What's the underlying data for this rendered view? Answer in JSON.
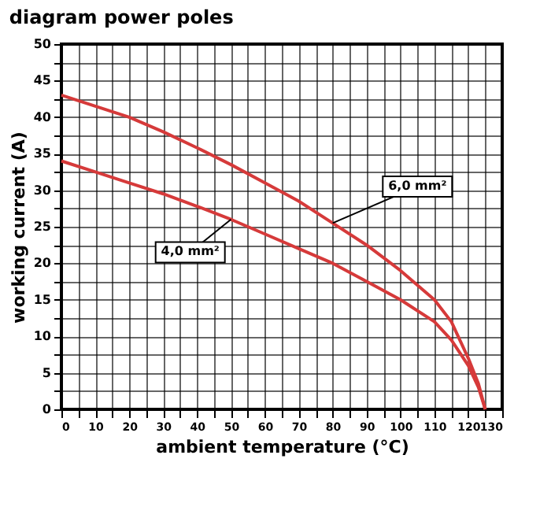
{
  "chart_data": {
    "type": "line",
    "title": "diagram power poles",
    "xlabel": "ambient temperature (°C)",
    "ylabel": "working current (A)",
    "xlim": [
      0,
      130
    ],
    "ylim": [
      0,
      50
    ],
    "xticks": [
      0,
      {
        "value": 5,
        "label": null
      },
      10,
      {
        "value": 15,
        "label": null
      },
      20,
      {
        "value": 25,
        "label": null
      },
      30,
      {
        "value": 35,
        "label": null
      },
      40,
      {
        "value": 45,
        "label": null
      },
      50,
      {
        "value": 55,
        "label": null
      },
      60,
      {
        "value": 65,
        "label": null
      },
      70,
      {
        "value": 75,
        "label": null
      },
      80,
      {
        "value": 85,
        "label": null
      },
      90,
      {
        "value": 95,
        "label": null
      },
      100,
      {
        "value": 105,
        "label": null
      },
      110,
      {
        "value": 115,
        "label": null
      },
      120,
      {
        "value": 125,
        "label": null
      },
      130
    ],
    "yticks": [
      0,
      {
        "value": 2.5,
        "label": null
      },
      5,
      {
        "value": 7.5,
        "label": null
      },
      10,
      {
        "value": 12.5,
        "label": null
      },
      15,
      {
        "value": 17.5,
        "label": null
      },
      20,
      {
        "value": 22.5,
        "label": null
      },
      25,
      {
        "value": 27.5,
        "label": null
      },
      30,
      {
        "value": 32.5,
        "label": null
      },
      35,
      {
        "value": 37.5,
        "label": null
      },
      40,
      {
        "value": 42.5,
        "label": null
      },
      45,
      {
        "value": 47.5,
        "label": null
      },
      50
    ],
    "grid": true,
    "legend": false,
    "marker": "none",
    "line_style": "solid",
    "series": [
      {
        "color": "#d63a3a",
        "x": [
          0,
          10,
          20,
          30,
          40,
          50,
          60,
          70,
          80,
          90,
          100,
          110,
          115,
          120,
          123,
          125
        ],
        "values": [
          43,
          41.5,
          40,
          38,
          35.8,
          33.5,
          31,
          28.5,
          25.5,
          22.5,
          19,
          15,
          12,
          7,
          3.5,
          0
        ]
      },
      {
        "color": "#d63a3a",
        "x": [
          0,
          10,
          20,
          30,
          40,
          50,
          60,
          70,
          80,
          90,
          100,
          110,
          115,
          120,
          123,
          125
        ],
        "values": [
          34,
          32.5,
          31,
          29.5,
          27.8,
          26,
          24,
          22,
          20,
          17.5,
          15,
          12,
          9.5,
          6,
          3,
          0
        ]
      }
    ],
    "annotations": [
      {
        "text": "6,0 mm²",
        "x": 80,
        "y": 25.5
      },
      {
        "text": "4,0 mm²",
        "x": 50,
        "y": 26
      }
    ]
  }
}
